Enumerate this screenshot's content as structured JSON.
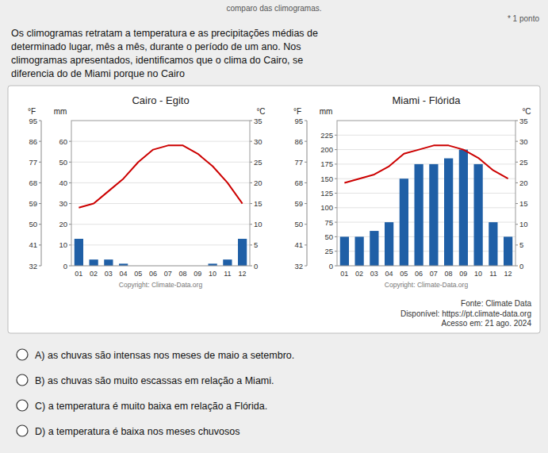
{
  "header": "comparo das climogramas.",
  "point_label": "* 1 ponto",
  "question": "Os climogramas retratam a temperatura e as precipitações médias de\ndeterminado lugar, mês a mês, durante o período de um ano. Nos\nclimogramas apresentados, identificamos que o clima do Cairo, se\ndiferencia do de Miami porque no Cairo",
  "source": "Fonte: Climate Data\nDisponível: https://pt.climate-data.org\nAcesso em: 21 ago. 2024",
  "options": [
    "A) as chuvas são intensas nos meses de maio a setembro.",
    "B) as chuvas são muito escassas em relação a Miami.",
    "C) a temperatura é muito baixa em relação a Flórida.",
    "D) a temperatura é baixa nos meses chuvosos"
  ],
  "chart_data": [
    {
      "type": "bar",
      "title": "Cairo - Egito",
      "annotations": [
        "Copyright: Climate-Data.org"
      ],
      "categories": [
        "01",
        "02",
        "03",
        "04",
        "05",
        "06",
        "07",
        "08",
        "09",
        "10",
        "11",
        "12"
      ],
      "series": [
        {
          "type": "bar",
          "color": "#1f5fa6",
          "values": [
            13,
            3,
            3,
            1,
            0,
            0,
            0,
            0,
            0,
            1,
            3,
            13
          ]
        },
        {
          "type": "line",
          "color": "#cc0000",
          "axis": "y2",
          "values": [
            14,
            15,
            18,
            21,
            25,
            28,
            29,
            29,
            27,
            24,
            20,
            15
          ]
        }
      ],
      "ylabel": "mm",
      "ylim": [
        0,
        70
      ],
      "yticks": [
        0,
        10,
        20,
        30,
        40,
        50,
        60
      ],
      "y2label": "°C",
      "y2lim": [
        0,
        35
      ],
      "y2ticks": [
        0,
        5,
        10,
        15,
        20,
        25,
        30,
        35
      ],
      "y3label": "°F",
      "y3lim": [
        0,
        35
      ],
      "y3ticks": [
        {
          "value": 0,
          "label": "32"
        },
        {
          "value": 5,
          "label": "41"
        },
        {
          "value": 10,
          "label": "50"
        },
        {
          "value": 15,
          "label": "59"
        },
        {
          "value": 20,
          "label": "68"
        },
        {
          "value": 25,
          "label": "77"
        },
        {
          "value": 30,
          "label": "86"
        },
        {
          "value": 35,
          "label": "95"
        }
      ],
      "grid": true
    },
    {
      "type": "bar",
      "title": "Miami - Flórida",
      "annotations": [
        "Copyright: Climate-Data.org"
      ],
      "categories": [
        "01",
        "02",
        "03",
        "04",
        "05",
        "06",
        "07",
        "08",
        "09",
        "10",
        "11",
        "12"
      ],
      "series": [
        {
          "type": "bar",
          "color": "#1f5fa6",
          "values": [
            50,
            50,
            60,
            75,
            150,
            175,
            175,
            185,
            200,
            175,
            75,
            50
          ]
        },
        {
          "type": "line",
          "color": "#cc0000",
          "axis": "y2",
          "values": [
            20,
            21,
            22,
            24,
            27,
            28,
            29,
            29,
            28,
            26,
            23,
            21
          ]
        }
      ],
      "ylabel": "mm",
      "ylim": [
        0,
        250
      ],
      "yticks": [
        0,
        25,
        50,
        75,
        100,
        125,
        150,
        175,
        200,
        225
      ],
      "y2label": "°C",
      "y2lim": [
        0,
        35
      ],
      "y2ticks": [
        0,
        5,
        10,
        15,
        20,
        25,
        30,
        35
      ],
      "y3label": "°F",
      "y3lim": [
        0,
        35
      ],
      "y3ticks": [
        {
          "value": 0,
          "label": "32"
        },
        {
          "value": 5,
          "label": "41"
        },
        {
          "value": 10,
          "label": "50"
        },
        {
          "value": 15,
          "label": "59"
        },
        {
          "value": 20,
          "label": "68"
        },
        {
          "value": 25,
          "label": "77"
        },
        {
          "value": 30,
          "label": "86"
        },
        {
          "value": 35,
          "label": "95"
        }
      ],
      "grid": true
    }
  ]
}
